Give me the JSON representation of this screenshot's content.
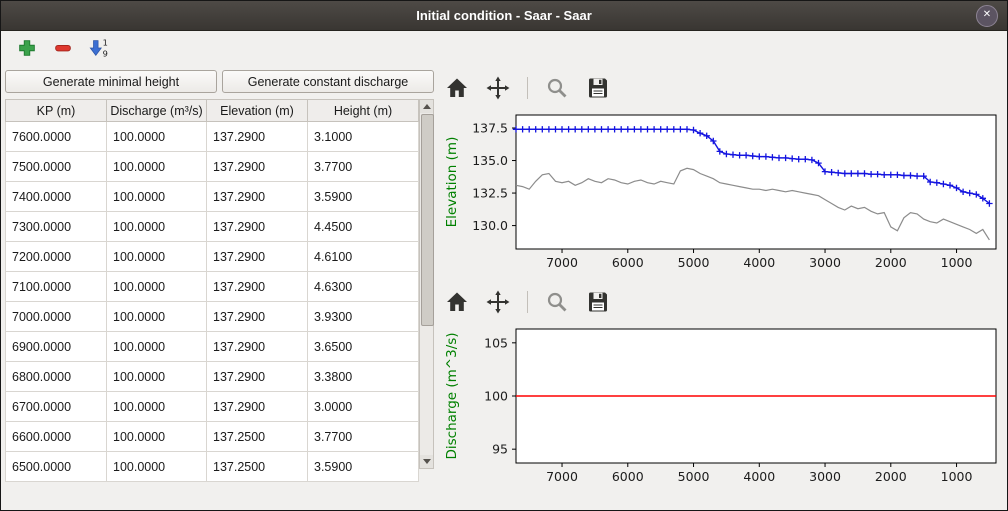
{
  "window": {
    "title": "Initial condition - Saar - Saar",
    "close_glyph": "✕"
  },
  "toolbar": {
    "add_icon": "add-row-icon",
    "remove_icon": "remove-row-icon",
    "sort_icon": {
      "name": "sort-rows-icon",
      "top_digit": "1",
      "bottom_digit": "9"
    }
  },
  "left_panel": {
    "buttons": {
      "minimal_height": "Generate minimal height",
      "constant_discharge": "Generate constant discharge"
    },
    "table": {
      "headers": [
        "KP (m)",
        "Discharge (m³/s)",
        "Elevation (m)",
        "Height (m)"
      ],
      "rows": [
        [
          "7600.0000",
          "100.0000",
          "137.2900",
          "3.1000"
        ],
        [
          "7500.0000",
          "100.0000",
          "137.2900",
          "3.7700"
        ],
        [
          "7400.0000",
          "100.0000",
          "137.2900",
          "3.5900"
        ],
        [
          "7300.0000",
          "100.0000",
          "137.2900",
          "4.4500"
        ],
        [
          "7200.0000",
          "100.0000",
          "137.2900",
          "4.6100"
        ],
        [
          "7100.0000",
          "100.0000",
          "137.2900",
          "4.6300"
        ],
        [
          "7000.0000",
          "100.0000",
          "137.2900",
          "3.9300"
        ],
        [
          "6900.0000",
          "100.0000",
          "137.2900",
          "3.6500"
        ],
        [
          "6800.0000",
          "100.0000",
          "137.2900",
          "3.3800"
        ],
        [
          "6700.0000",
          "100.0000",
          "137.2900",
          "3.0000"
        ],
        [
          "6600.0000",
          "100.0000",
          "137.2500",
          "3.7700"
        ],
        [
          "6500.0000",
          "100.0000",
          "137.2500",
          "3.5900"
        ]
      ]
    }
  },
  "nav_toolbar_icons": [
    "home",
    "pan",
    "zoom",
    "save"
  ],
  "chart_data": [
    {
      "type": "line",
      "ylabel": "Elevation (m)",
      "ylabel_color": "#008000",
      "xlim": [
        7700,
        400
      ],
      "ylim": [
        128.2,
        138.5
      ],
      "x_reversed": true,
      "xticks": [
        7000,
        6000,
        5000,
        4000,
        3000,
        2000,
        1000
      ],
      "xtick_labels": [
        "7000",
        "6000",
        "5000",
        "4000",
        "3000",
        "2000",
        "1000"
      ],
      "yticks": [
        137.5,
        135.0,
        132.5,
        130.0
      ],
      "ytick_labels": [
        "137.5",
        "135.0",
        "132.5",
        "130.0"
      ],
      "grid": false,
      "series": [
        {
          "name": "water-surface-elevation",
          "color": "#1414e0",
          "width": 1.4,
          "marker": "+",
          "x_start": 7700,
          "x_step": -100,
          "values": [
            137.4,
            137.4,
            137.4,
            137.4,
            137.4,
            137.4,
            137.4,
            137.4,
            137.4,
            137.4,
            137.4,
            137.4,
            137.4,
            137.4,
            137.4,
            137.4,
            137.4,
            137.4,
            137.4,
            137.4,
            137.4,
            137.4,
            137.4,
            137.4,
            137.4,
            137.4,
            137.4,
            137.35,
            137.1,
            136.9,
            136.5,
            135.7,
            135.5,
            135.45,
            135.4,
            135.4,
            135.35,
            135.3,
            135.3,
            135.25,
            135.2,
            135.2,
            135.15,
            135.1,
            135.1,
            135.05,
            134.8,
            134.15,
            134.1,
            134.05,
            134.0,
            134.0,
            134.0,
            134.0,
            133.95,
            133.95,
            133.9,
            133.9,
            133.9,
            133.85,
            133.85,
            133.8,
            133.8,
            133.35,
            133.3,
            133.2,
            133.1,
            132.9,
            132.6,
            132.5,
            132.4,
            132.1,
            131.7
          ]
        },
        {
          "name": "bottom-elevation",
          "color": "#8c8c8c",
          "width": 1.2,
          "marker": null,
          "x_start": 7700,
          "x_step": -100,
          "values": [
            133.1,
            133.0,
            132.8,
            133.4,
            133.9,
            134.0,
            133.4,
            133.3,
            133.4,
            133.1,
            133.3,
            133.6,
            133.4,
            133.3,
            133.6,
            133.5,
            133.3,
            133.2,
            133.4,
            133.5,
            133.3,
            133.2,
            133.4,
            133.3,
            133.2,
            134.2,
            134.4,
            134.3,
            134.0,
            133.8,
            133.6,
            133.3,
            133.2,
            133.1,
            133.0,
            132.9,
            132.8,
            132.8,
            132.7,
            132.8,
            132.7,
            132.6,
            132.7,
            132.6,
            132.5,
            132.4,
            132.3,
            132.0,
            131.7,
            131.4,
            131.2,
            131.5,
            131.3,
            131.4,
            131.1,
            130.9,
            131.0,
            129.9,
            129.6,
            130.6,
            131.0,
            130.9,
            130.5,
            130.3,
            130.2,
            130.5,
            130.3,
            130.1,
            129.9,
            129.7,
            129.4,
            129.7,
            128.9
          ]
        }
      ]
    },
    {
      "type": "line",
      "ylabel": "Discharge (m^3/s)",
      "ylabel_color": "#008000",
      "xlim": [
        7700,
        400
      ],
      "ylim": [
        93.7,
        106.3
      ],
      "x_reversed": true,
      "xticks": [
        7000,
        6000,
        5000,
        4000,
        3000,
        2000,
        1000
      ],
      "xtick_labels": [
        "7000",
        "6000",
        "5000",
        "4000",
        "3000",
        "2000",
        "1000"
      ],
      "yticks": [
        105,
        100,
        95
      ],
      "ytick_labels": [
        "105",
        "100",
        "95"
      ],
      "grid": false,
      "series": [
        {
          "name": "constant-discharge",
          "color": "#ff0000",
          "width": 1.4,
          "marker": null,
          "points": [
            [
              7700,
              100
            ],
            [
              400,
              100
            ]
          ]
        }
      ]
    }
  ]
}
